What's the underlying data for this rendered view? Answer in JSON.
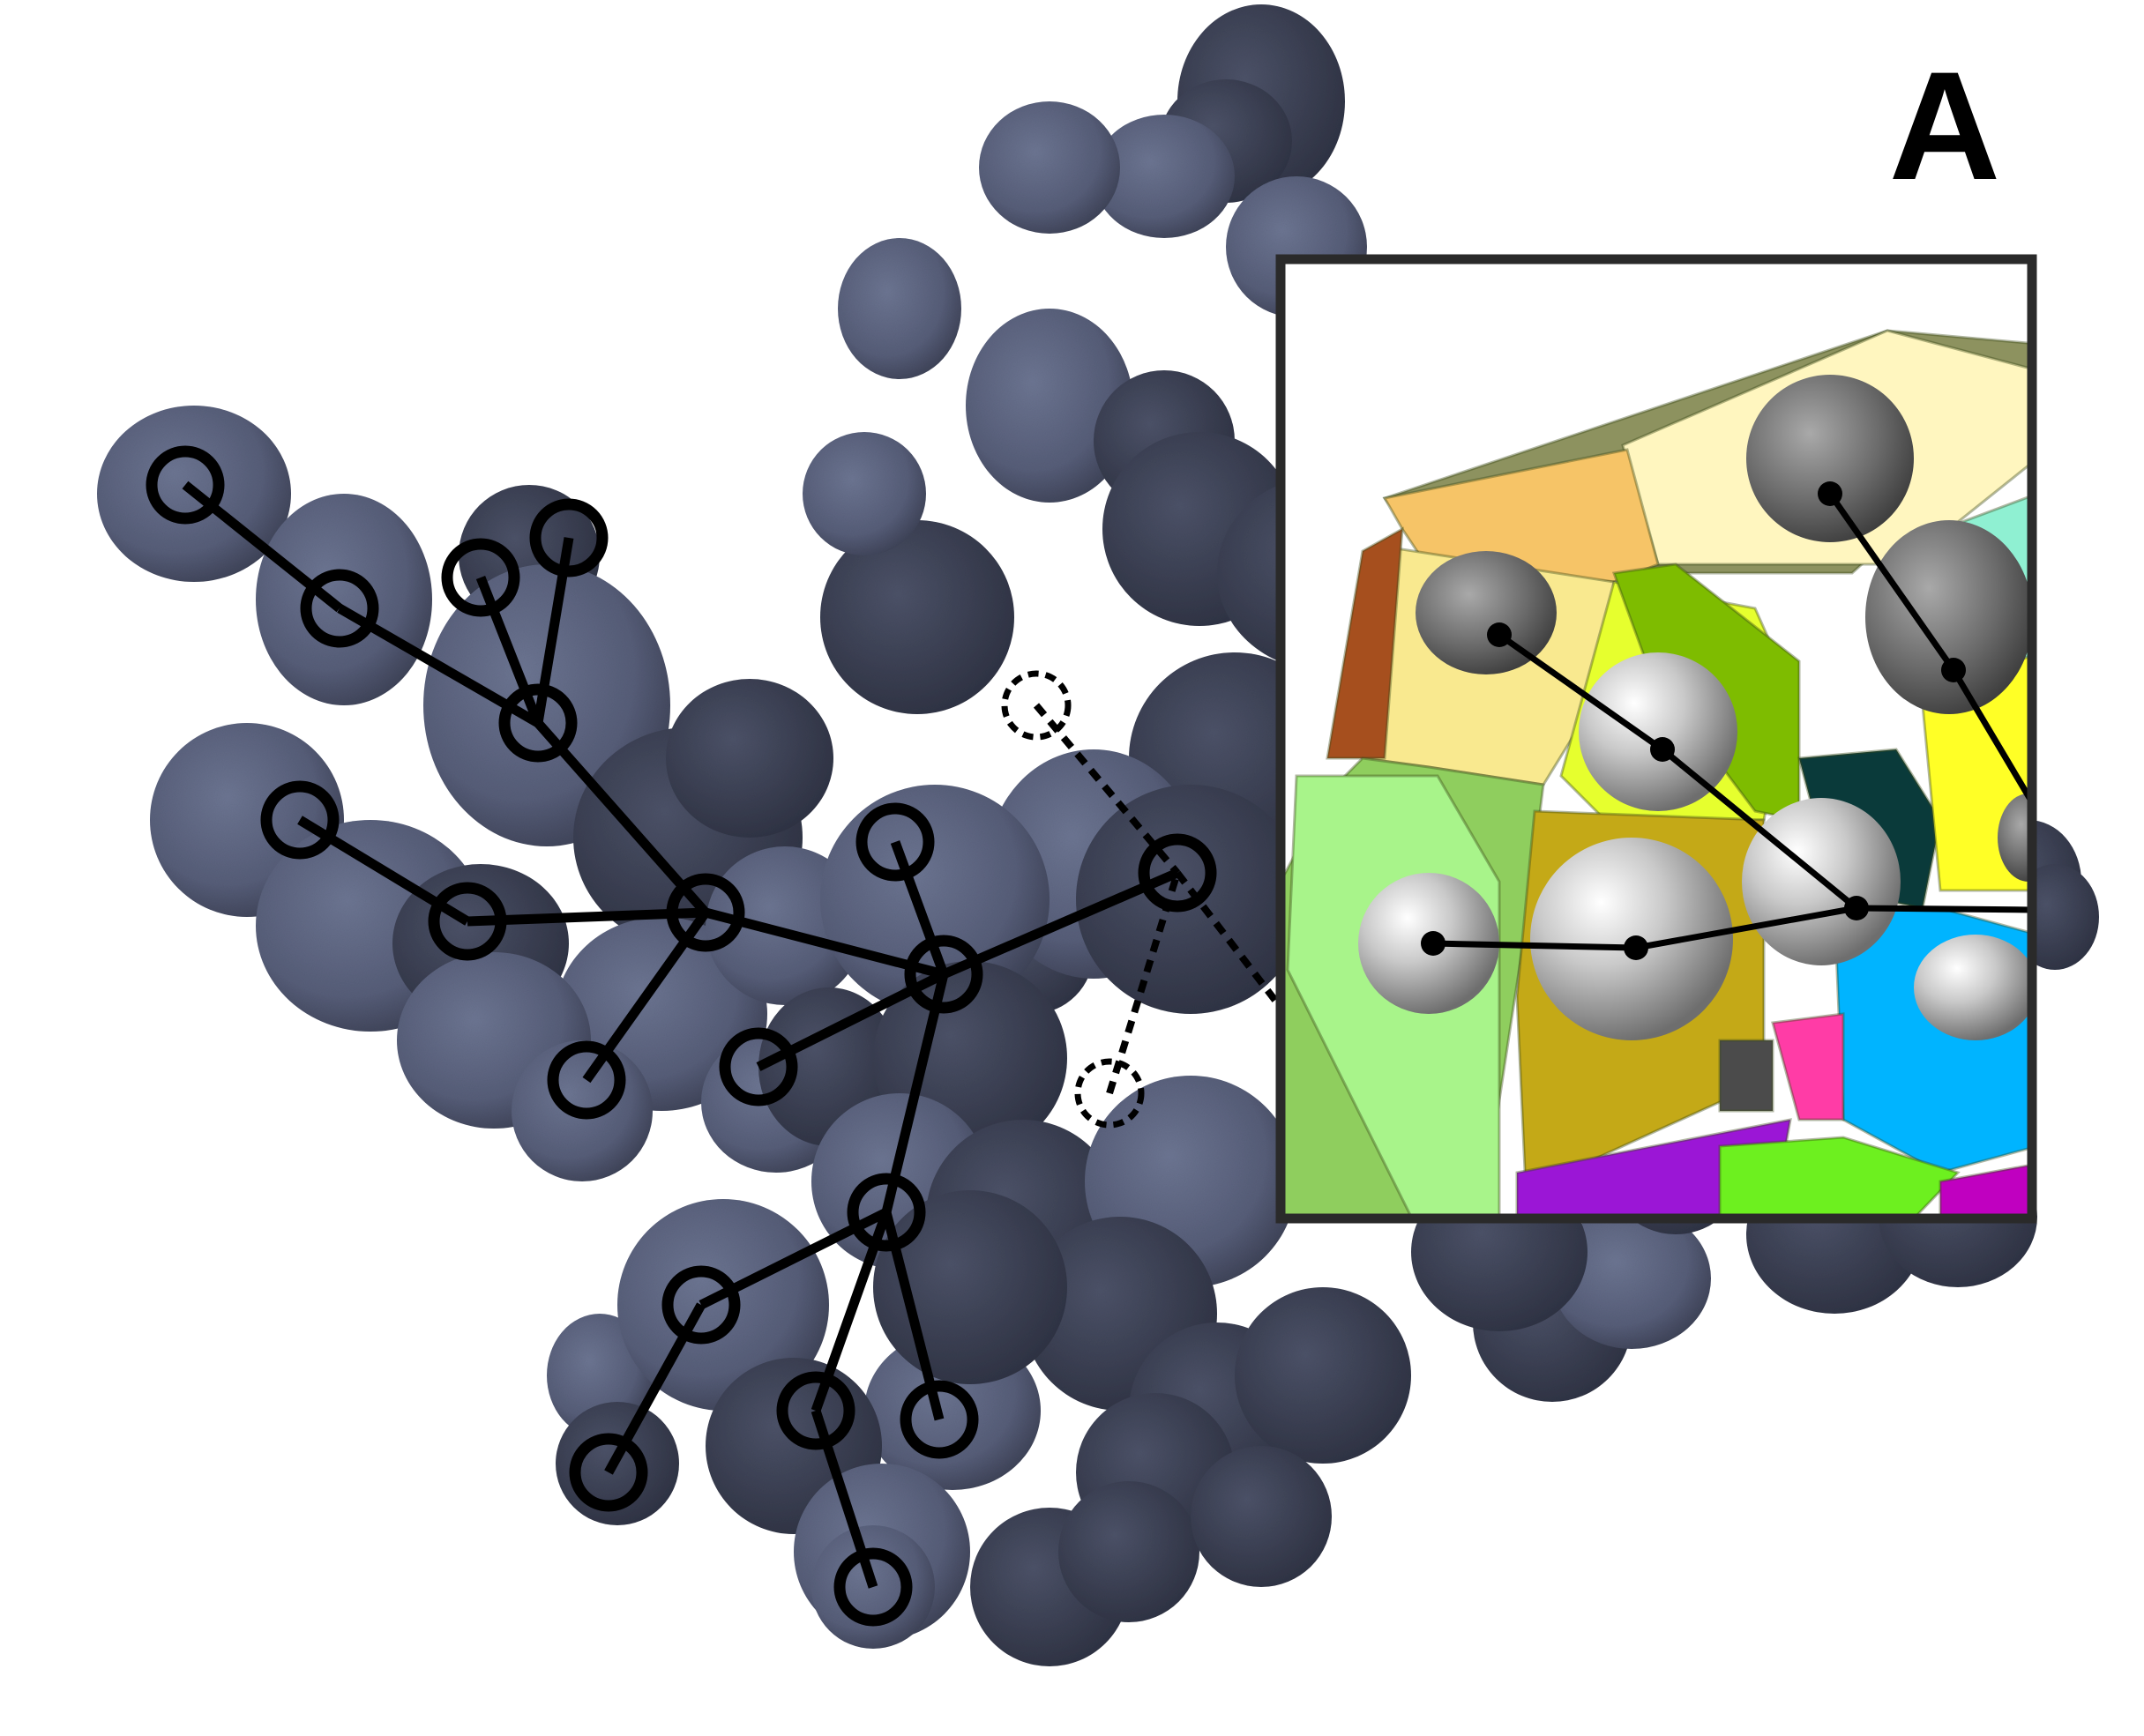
{
  "figure": {
    "panel_label": "A",
    "colors": {
      "background": "#ffffff",
      "cell_light": "#5e6682",
      "cell_dark": "#3d4257",
      "graph_line": "#000000",
      "inset_border": "#2a2a2a"
    },
    "main_graph": {
      "node_shape": "open-circle",
      "edge_style": "solid",
      "dotted_style": "dashed",
      "node_count": 22,
      "edge_count": 21
    },
    "inset": {
      "description_visible": "",
      "node_shape": "filled-dot-on-sphere",
      "palette": [
        "#8d925f",
        "#f7c96b",
        "#fff9c4",
        "#a8f48a",
        "#e6ff2e",
        "#7ebc00",
        "#c4a917",
        "#0a3a3a",
        "#8ff0d2",
        "#00b4ff",
        "#ff3ca6",
        "#9b16d6",
        "#6df01f",
        "#ffff26",
        "#c000c0"
      ]
    }
  }
}
